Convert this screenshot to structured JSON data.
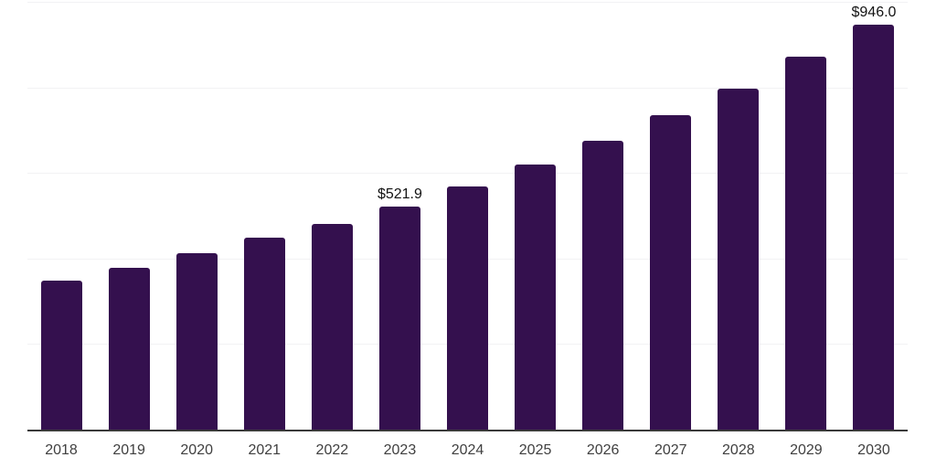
{
  "chart_data": {
    "type": "bar",
    "categories": [
      "2018",
      "2019",
      "2020",
      "2021",
      "2022",
      "2023",
      "2024",
      "2025",
      "2026",
      "2027",
      "2028",
      "2029",
      "2030"
    ],
    "values": [
      348,
      379,
      412,
      448,
      480,
      521.9,
      569,
      619,
      675,
      735,
      797,
      871,
      946
    ],
    "data_labels": [
      "",
      "",
      "",
      "",
      "",
      "$521.9",
      "",
      "",
      "",
      "",
      "",
      "",
      "$946.0"
    ],
    "title": "",
    "xlabel": "",
    "ylabel": "",
    "ylim": [
      0,
      1000
    ],
    "gridline_values": [
      200,
      400,
      600,
      800,
      1000
    ],
    "grid": "horizontal",
    "legend": "none",
    "colors": {
      "bar": "#34104E",
      "gridline": "#f2f2f4",
      "axis_line": "#3a3a3a",
      "tick_label": "#404040",
      "data_label": "#131313",
      "background": "#ffffff"
    }
  }
}
